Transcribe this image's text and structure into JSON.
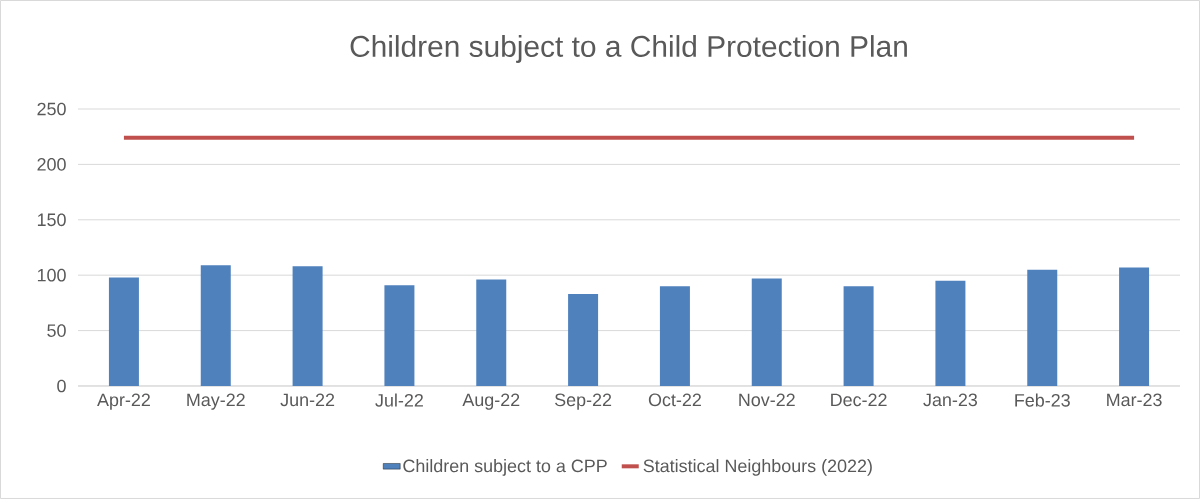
{
  "chart_data": {
    "type": "bar",
    "title": "Children subject to a Child Protection Plan",
    "categories": [
      "Apr-22",
      "May-22",
      "Jun-22",
      "Jul-22",
      "Aug-22",
      "Sep-22",
      "Oct-22",
      "Nov-22",
      "Dec-22",
      "Jan-23",
      "Feb-23",
      "Mar-23"
    ],
    "series": [
      {
        "name": "Children subject to a CPP",
        "color": "#4f81bd",
        "values": [
          98,
          109,
          108,
          91,
          96,
          83,
          90,
          97,
          90,
          95,
          105,
          107
        ]
      },
      {
        "name": "Statistical Neighbours (2022)",
        "type": "line",
        "color": "#c0504d",
        "values": [
          224,
          224,
          224,
          224,
          224,
          224,
          224,
          224,
          224,
          224,
          224,
          224
        ]
      }
    ],
    "ylim": [
      0,
      250
    ],
    "yticks": [
      0,
      50,
      100,
      150,
      200,
      250
    ],
    "grid": "y",
    "legend": "bottom",
    "marker": "none"
  }
}
